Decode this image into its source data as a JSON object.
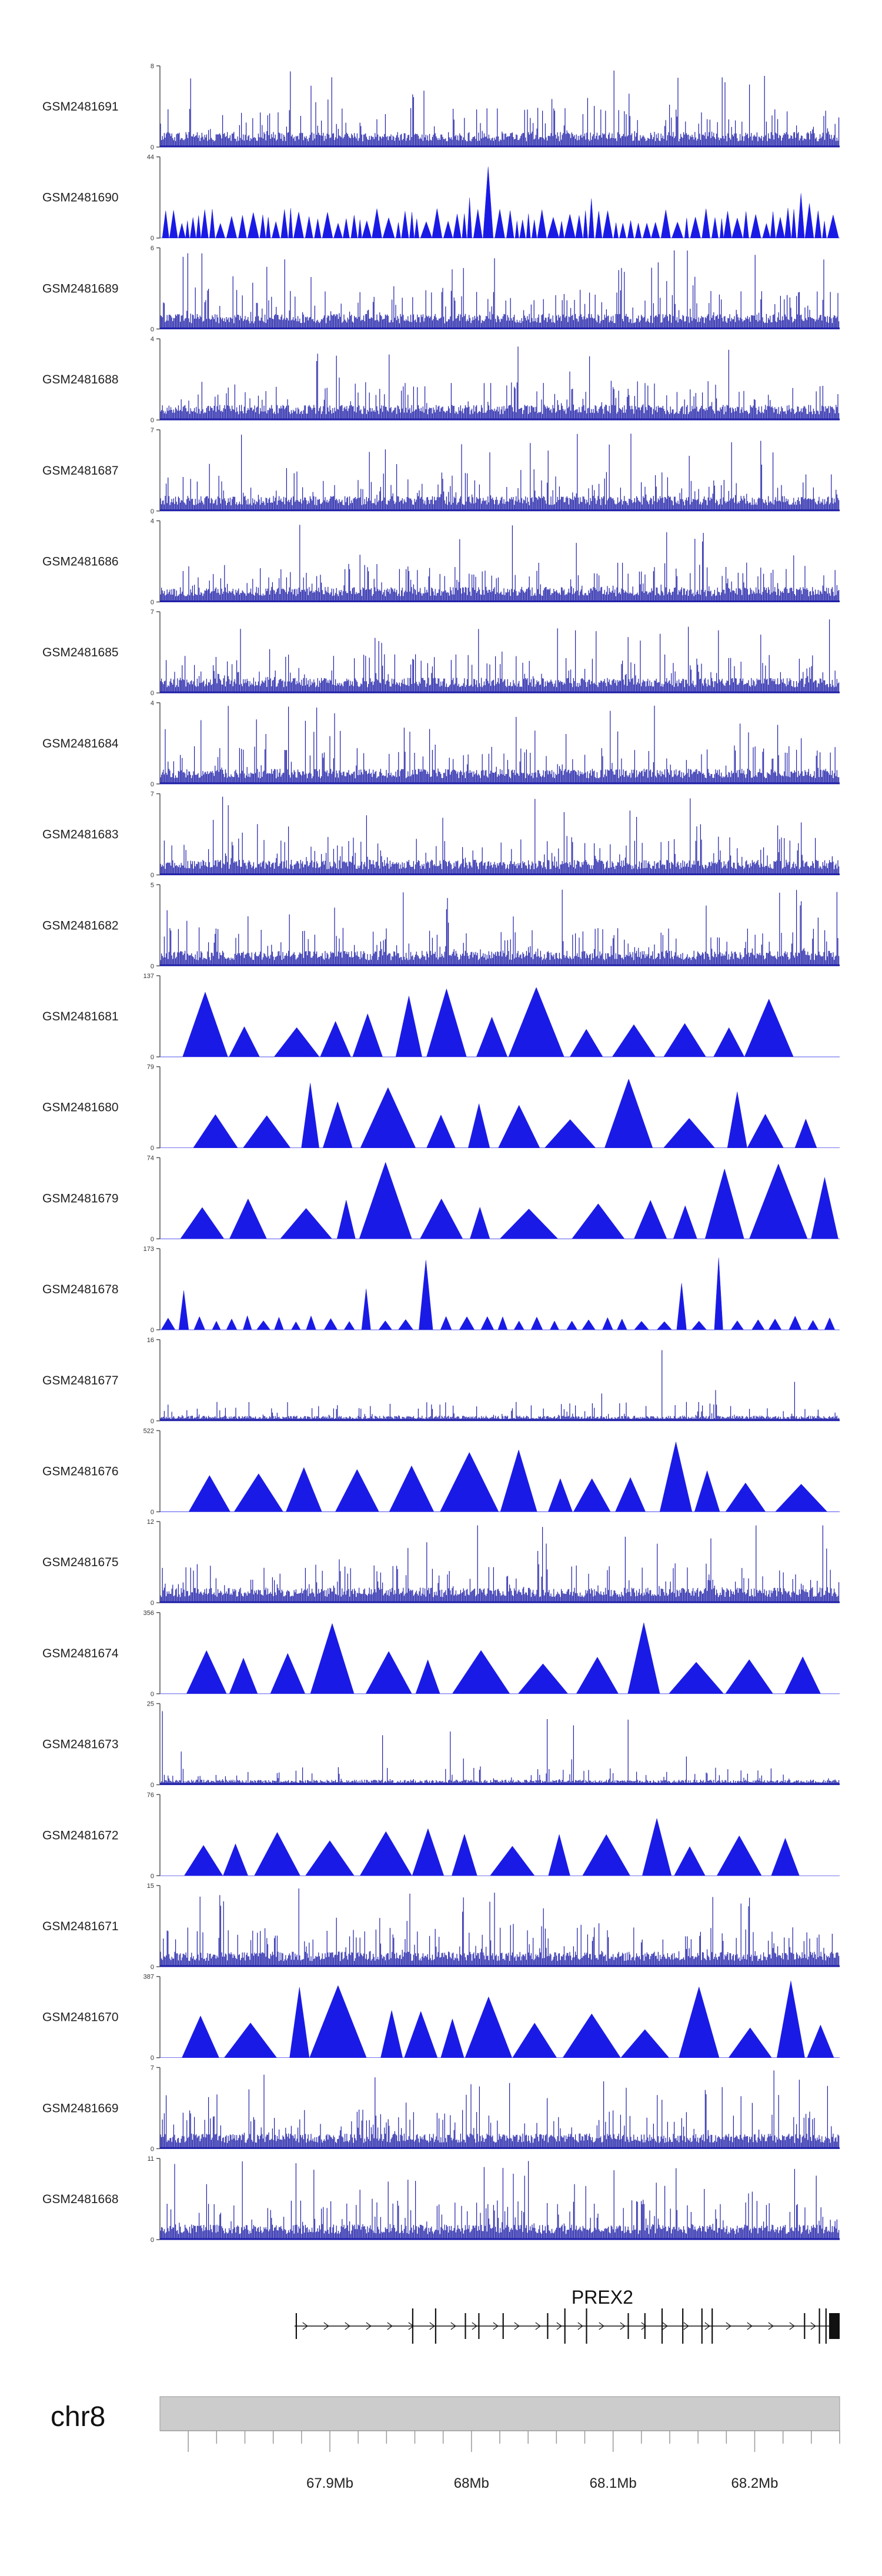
{
  "chart_data": {
    "type": "area",
    "title": "",
    "chromosome": "chr8",
    "x_range": [
      67.78,
      68.26
    ],
    "x_unit": "Mb",
    "x_ticks": [
      {
        "value": 67.9,
        "label": "67.9Mb"
      },
      {
        "value": 68.0,
        "label": "68Mb"
      },
      {
        "value": 68.1,
        "label": "68.1Mb"
      },
      {
        "value": 68.2,
        "label": "68.2Mb"
      }
    ],
    "gene": {
      "name": "PREX2",
      "start": 67.875,
      "end": 68.26
    },
    "series": [
      {
        "name": "GSM2481691",
        "ymax": 8,
        "style": "dense",
        "seed": 11
      },
      {
        "name": "GSM2481690",
        "ymax": 44,
        "style": "peaks",
        "seed": 12
      },
      {
        "name": "GSM2481689",
        "ymax": 6,
        "style": "dense",
        "seed": 13
      },
      {
        "name": "GSM2481688",
        "ymax": 4,
        "style": "dense",
        "seed": 14
      },
      {
        "name": "GSM2481687",
        "ymax": 7,
        "style": "dense",
        "seed": 15
      },
      {
        "name": "GSM2481686",
        "ymax": 4,
        "style": "dense",
        "seed": 16
      },
      {
        "name": "GSM2481685",
        "ymax": 7,
        "style": "dense",
        "seed": 17
      },
      {
        "name": "GSM2481684",
        "ymax": 4,
        "style": "dense",
        "seed": 18
      },
      {
        "name": "GSM2481683",
        "ymax": 7,
        "style": "dense",
        "seed": 19
      },
      {
        "name": "GSM2481682",
        "ymax": 5,
        "style": "dense",
        "seed": 20
      },
      {
        "name": "GSM2481681",
        "ymax": 137,
        "style": "triangles",
        "seed": 21
      },
      {
        "name": "GSM2481680",
        "ymax": 79,
        "style": "triangles",
        "seed": 22
      },
      {
        "name": "GSM2481679",
        "ymax": 74,
        "style": "triangles",
        "seed": 23
      },
      {
        "name": "GSM2481678",
        "ymax": 173,
        "style": "smalltri",
        "seed": 24
      },
      {
        "name": "GSM2481677",
        "ymax": 16,
        "style": "sparse",
        "seed": 25
      },
      {
        "name": "GSM2481676",
        "ymax": 522,
        "style": "triangles",
        "seed": 26
      },
      {
        "name": "GSM2481675",
        "ymax": 12,
        "style": "dense",
        "seed": 27
      },
      {
        "name": "GSM2481674",
        "ymax": 356,
        "style": "triangles",
        "seed": 28
      },
      {
        "name": "GSM2481673",
        "ymax": 25,
        "style": "sparse",
        "seed": 29
      },
      {
        "name": "GSM2481672",
        "ymax": 76,
        "style": "triangles",
        "seed": 30
      },
      {
        "name": "GSM2481671",
        "ymax": 15,
        "style": "dense",
        "seed": 31
      },
      {
        "name": "GSM2481670",
        "ymax": 387,
        "style": "triangles",
        "seed": 32
      },
      {
        "name": "GSM2481669",
        "ymax": 7,
        "style": "dense",
        "seed": 33
      },
      {
        "name": "GSM2481668",
        "ymax": 11,
        "style": "dense",
        "seed": 34
      }
    ]
  },
  "colors": {
    "track_fill": "#1a1ae6",
    "track_dense": "#1e1ea8",
    "axis": "#555555",
    "ideogram": "#cccccc",
    "gene": "#111111"
  }
}
